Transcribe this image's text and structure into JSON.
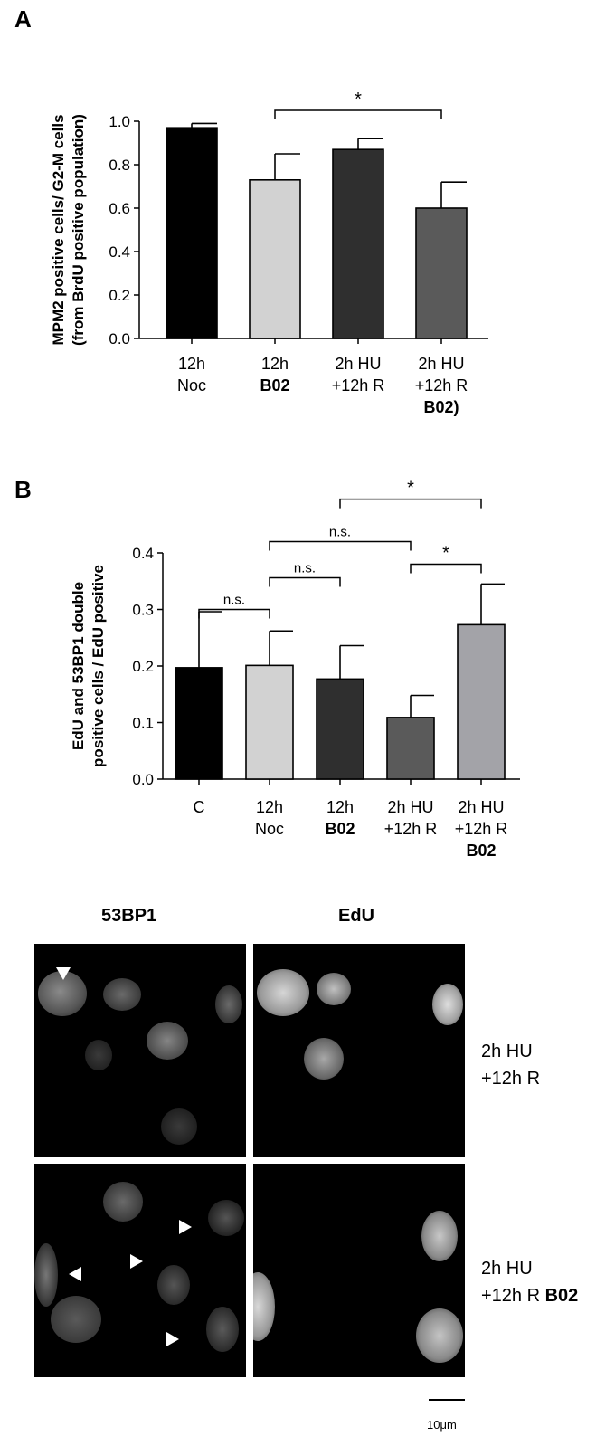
{
  "panel_a": {
    "letter": "A",
    "chart_data": {
      "type": "bar",
      "ylabel_lines": [
        "MPM2 positive cells/ G2-M cells",
        "(from BrdU positive population)"
      ],
      "ylim": [
        0,
        1.0
      ],
      "yticks": [
        "0.0",
        "0.2",
        "0.4",
        "0.6",
        "0.8",
        "1.0"
      ],
      "categories": [
        {
          "lines": [
            "12h",
            "Noc"
          ],
          "bold": [
            false,
            false
          ]
        },
        {
          "lines": [
            "12h",
            "B02"
          ],
          "bold": [
            false,
            true
          ]
        },
        {
          "lines": [
            "2h HU",
            "+12h R"
          ],
          "bold": [
            false,
            false
          ]
        },
        {
          "lines": [
            "2h HU",
            "+12h R",
            "B02)"
          ],
          "bold": [
            false,
            false,
            true
          ]
        }
      ],
      "values": [
        0.97,
        0.73,
        0.87,
        0.6
      ],
      "errors": [
        0.02,
        0.12,
        0.05,
        0.12
      ],
      "colors": [
        "#000000",
        "#d2d2d2",
        "#2f2f2f",
        "#5a5a5a"
      ],
      "significance": [
        {
          "from": 1,
          "to": 3,
          "label": "*"
        }
      ]
    }
  },
  "panel_b": {
    "letter": "B",
    "chart_data": {
      "type": "bar",
      "ylabel_lines": [
        "EdU and 53BP1 double",
        "positive cells / EdU positive"
      ],
      "ylim": [
        0,
        0.4
      ],
      "yticks": [
        "0.0",
        "0.1",
        "0.2",
        "0.3",
        "0.4"
      ],
      "categories": [
        {
          "lines": [
            "C"
          ],
          "bold": [
            false
          ]
        },
        {
          "lines": [
            "12h",
            "Noc"
          ],
          "bold": [
            false,
            false
          ]
        },
        {
          "lines": [
            "12h",
            "B02"
          ],
          "bold": [
            false,
            true
          ]
        },
        {
          "lines": [
            "2h HU",
            "+12h R"
          ],
          "bold": [
            false,
            false
          ]
        },
        {
          "lines": [
            "2h HU",
            "+12h R",
            "B02"
          ],
          "bold": [
            false,
            false,
            true
          ]
        }
      ],
      "values": [
        0.197,
        0.201,
        0.177,
        0.109,
        0.273
      ],
      "errors": [
        0.099,
        0.061,
        0.059,
        0.039,
        0.072
      ],
      "colors": [
        "#000000",
        "#d2d2d2",
        "#2f2f2f",
        "#5a5a5a",
        "#a3a3a8"
      ],
      "significance": [
        {
          "from": 0,
          "to": 1,
          "label": "n.s.",
          "level": 0.3
        },
        {
          "from": 1,
          "to": 2,
          "label": "n.s.",
          "level": 0.356
        },
        {
          "from": 3,
          "to": 4,
          "label": "*",
          "level": 0.38
        },
        {
          "from": 1,
          "to": 3,
          "label": "n.s.",
          "level": 0.42
        },
        {
          "from": 2,
          "to": 4,
          "label": "*",
          "level": 0.495
        }
      ]
    }
  },
  "micrographs": {
    "col_headers": [
      "53BP1",
      "EdU"
    ],
    "row1_label": {
      "line1": "2h HU",
      "line2": "+12h R"
    },
    "row2_label": {
      "line1": "2h HU",
      "line2_plain": "+12h R ",
      "line2_bold": "B02"
    },
    "scale_bar": "10μm"
  }
}
